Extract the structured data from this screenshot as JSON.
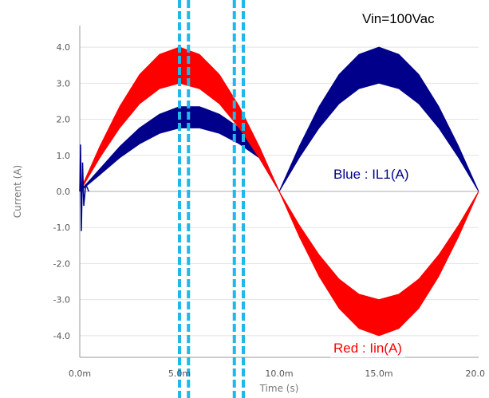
{
  "chart_data": {
    "type": "area",
    "annotation": "Vin=100Vac",
    "xlabel": "Time (s)",
    "ylabel": "Current (A)",
    "xlim": [
      0,
      20
    ],
    "ylim": [
      -4.6,
      4.6
    ],
    "x_ticks": [
      {
        "value": 0,
        "label": "0.0m"
      },
      {
        "value": 5,
        "label": "5.0m"
      },
      {
        "value": 10,
        "label": "10.0m"
      },
      {
        "value": 15,
        "label": "15.0m"
      },
      {
        "value": 20,
        "label": "20.0"
      }
    ],
    "y_ticks": [
      {
        "value": 4,
        "label": "4.0"
      },
      {
        "value": 3,
        "label": "3.0"
      },
      {
        "value": 2,
        "label": "2.0"
      },
      {
        "value": 1,
        "label": "1.0"
      },
      {
        "value": 0,
        "label": "0.0"
      },
      {
        "value": -1,
        "label": "-1.0"
      },
      {
        "value": -2,
        "label": "-2.0"
      },
      {
        "value": -3,
        "label": "-3.0"
      },
      {
        "value": -4,
        "label": "-4.0"
      }
    ],
    "grid": "horizontal",
    "series": [
      {
        "name": "IL1(A)",
        "label": "Blue : IL1(A)",
        "color": "#00008b",
        "x": [
          0,
          1,
          2,
          3,
          4,
          5,
          6,
          7,
          8,
          9,
          10,
          11,
          12,
          13,
          14,
          15,
          16,
          17,
          18,
          19,
          20
        ],
        "upper": [
          0,
          0.62,
          1.24,
          1.76,
          2.14,
          2.35,
          2.35,
          2.14,
          1.76,
          1.24,
          0,
          1.24,
          2.35,
          3.24,
          3.8,
          4.0,
          3.8,
          3.24,
          2.35,
          1.24,
          0
        ],
        "lower": [
          0,
          0.46,
          0.93,
          1.32,
          1.61,
          1.76,
          1.76,
          1.61,
          1.32,
          0.93,
          0,
          0.93,
          1.76,
          2.43,
          2.85,
          3.0,
          2.85,
          2.43,
          1.76,
          0.93,
          0
        ]
      },
      {
        "name": "Iin(A)",
        "label": "Red : Iin(A)",
        "color": "#ff0000",
        "x": [
          0,
          1,
          2,
          3,
          4,
          5,
          6,
          7,
          8,
          9,
          10,
          11,
          12,
          13,
          14,
          15,
          16,
          17,
          18,
          19,
          20
        ],
        "upper": [
          0,
          1.24,
          2.35,
          3.24,
          3.8,
          4.0,
          3.8,
          3.24,
          2.35,
          1.24,
          0,
          -0.93,
          -1.76,
          -2.43,
          -2.85,
          -3.0,
          -2.85,
          -2.43,
          -1.76,
          -0.93,
          0
        ],
        "lower": [
          0,
          0.93,
          1.76,
          2.43,
          2.85,
          3.0,
          2.85,
          2.43,
          1.76,
          0.93,
          0,
          -1.24,
          -2.35,
          -3.24,
          -3.8,
          -4.0,
          -3.8,
          -3.24,
          -2.35,
          -1.24,
          0
        ]
      }
    ],
    "markers": [
      {
        "x": 5.0,
        "color": "#1fb8e8"
      },
      {
        "x": 5.45,
        "color": "#1fb8e8"
      },
      {
        "x": 7.75,
        "color": "#1fb8e8"
      },
      {
        "x": 8.2,
        "color": "#1fb8e8"
      }
    ]
  }
}
